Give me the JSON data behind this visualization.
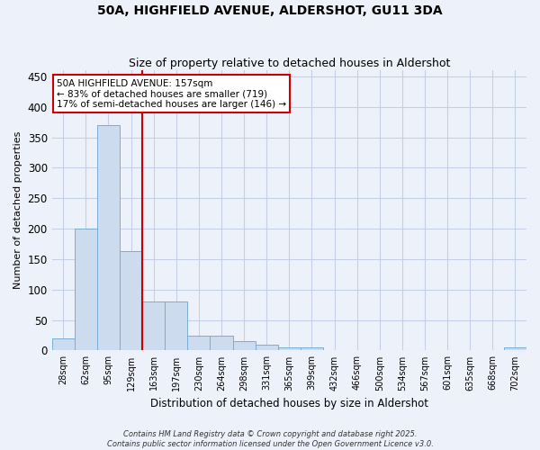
{
  "title": "50A, HIGHFIELD AVENUE, ALDERSHOT, GU11 3DA",
  "subtitle": "Size of property relative to detached houses in Aldershot",
  "xlabel": "Distribution of detached houses by size in Aldershot",
  "ylabel": "Number of detached properties",
  "categories": [
    "28sqm",
    "62sqm",
    "95sqm",
    "129sqm",
    "163sqm",
    "197sqm",
    "230sqm",
    "264sqm",
    "298sqm",
    "331sqm",
    "365sqm",
    "399sqm",
    "432sqm",
    "466sqm",
    "500sqm",
    "534sqm",
    "567sqm",
    "601sqm",
    "635sqm",
    "668sqm",
    "702sqm"
  ],
  "values": [
    20,
    200,
    370,
    163,
    80,
    80,
    25,
    25,
    15,
    10,
    5,
    5,
    0,
    0,
    0,
    0,
    0,
    0,
    0,
    0,
    5
  ],
  "bar_color": "#ccdcee",
  "bar_edge_color": "#7aaed6",
  "vline_color": "#cc0000",
  "annotation_text": "50A HIGHFIELD AVENUE: 157sqm\n← 83% of detached houses are smaller (719)\n17% of semi-detached houses are larger (146) →",
  "annotation_box_color": "white",
  "annotation_box_edge": "#cc0000",
  "bg_color": "#edf1f9",
  "grid_color": "#c5cfe8",
  "footer": "Contains HM Land Registry data © Crown copyright and database right 2025.\nContains public sector information licensed under the Open Government Licence v3.0.",
  "ylim": [
    0,
    460
  ],
  "yticks": [
    0,
    50,
    100,
    150,
    200,
    250,
    300,
    350,
    400,
    450
  ],
  "title_fontsize": 10,
  "subtitle_fontsize": 9
}
